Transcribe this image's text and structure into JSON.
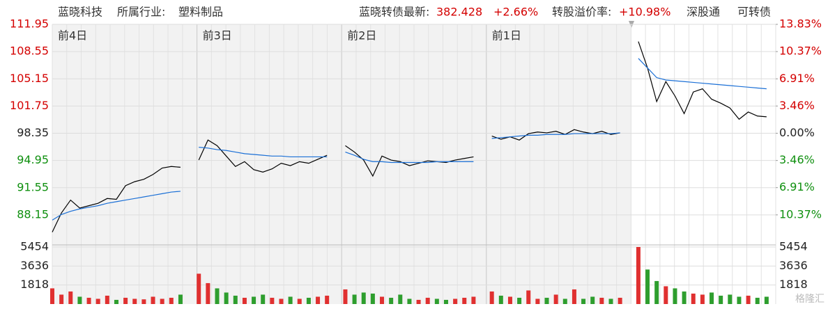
{
  "header": {
    "name": "蓝晓科技",
    "industry_label": "所属行业:",
    "industry": "塑料制品",
    "quote_label": "蓝晓转债最新:",
    "quote": "382.428",
    "change": "+2.66%",
    "premium_label": "转股溢价率:",
    "premium": "+10.98%",
    "tag1": "深股通",
    "tag2": "可转债",
    "watermark": "格隆汇"
  },
  "chart_data": [
    {
      "type": "line",
      "section_labels": [
        "前4日",
        "前3日",
        "前2日",
        "前1日"
      ],
      "x": [
        0,
        1,
        2,
        3,
        4,
        5,
        6,
        7,
        8,
        9,
        10,
        11,
        12,
        13,
        14,
        15,
        16,
        17,
        18,
        19,
        20,
        21,
        22,
        23,
        24,
        25,
        26,
        27,
        28,
        29,
        30,
        31,
        32,
        33,
        34,
        35,
        36,
        37,
        38,
        39,
        40,
        41,
        42,
        43,
        44,
        45,
        46,
        47,
        48,
        49,
        50,
        51,
        52,
        53,
        54,
        55,
        56,
        57,
        58,
        59,
        60,
        61,
        62,
        63,
        64,
        65,
        66,
        67,
        68,
        69,
        70,
        71,
        72,
        73,
        74,
        75,
        76,
        77,
        78,
        79
      ],
      "xlim": [
        0,
        79
      ],
      "ylim": [
        84.75,
        111.95
      ],
      "yticks": [
        111.95,
        108.55,
        105.15,
        101.75,
        98.35,
        94.95,
        91.55,
        88.15
      ],
      "y2lim": [
        -13.83,
        13.83
      ],
      "y2ticks": [
        {
          "value": 13.83,
          "label": "13.83%"
        },
        {
          "value": 10.37,
          "label": "10.37%"
        },
        {
          "value": 6.91,
          "label": "6.91%"
        },
        {
          "value": 3.46,
          "label": "3.46%"
        },
        {
          "value": 0,
          "label": "0.00%"
        },
        {
          "value": -3.46,
          "label": "3.46%"
        },
        {
          "value": -6.91,
          "label": "6.91%"
        },
        {
          "value": -10.37,
          "label": "10.37%"
        }
      ],
      "up_color": "#d40000",
      "down_color": "#109010",
      "grid": true,
      "series": [
        {
          "color": "#000000",
          "values": [
            86.0,
            88.4,
            90.0,
            89.0,
            89.3,
            89.6,
            90.2,
            90.1,
            91.8,
            92.3,
            92.6,
            93.2,
            94.0,
            94.2,
            94.1,
            null,
            95.0,
            97.5,
            96.8,
            95.5,
            94.2,
            94.8,
            93.8,
            93.5,
            93.9,
            94.6,
            94.3,
            94.8,
            94.6,
            95.1,
            95.6,
            null,
            96.8,
            96.0,
            95.0,
            93.0,
            95.5,
            95.0,
            94.8,
            94.3,
            94.6,
            94.9,
            94.8,
            94.7,
            95.0,
            95.2,
            95.4,
            null,
            98.0,
            97.6,
            97.9,
            97.5,
            98.3,
            98.5,
            98.4,
            98.6,
            98.2,
            98.8,
            98.5,
            98.3,
            98.6,
            98.2,
            98.4,
            null,
            109.8,
            106.5,
            102.3,
            104.8,
            103.0,
            100.8,
            103.5,
            103.9,
            102.6,
            102.1,
            101.5,
            100.1,
            101.0,
            100.5,
            100.4,
            null
          ]
        },
        {
          "color": "#1a6fd6",
          "values": [
            87.5,
            88.2,
            88.6,
            88.9,
            89.1,
            89.3,
            89.6,
            89.8,
            90.0,
            90.2,
            90.4,
            90.6,
            90.8,
            91.0,
            91.1,
            null,
            96.6,
            96.5,
            96.3,
            96.2,
            96.0,
            95.8,
            95.7,
            95.6,
            95.5,
            95.5,
            95.4,
            95.4,
            95.4,
            95.4,
            95.4,
            null,
            96.0,
            95.6,
            95.1,
            94.8,
            94.8,
            94.7,
            94.7,
            94.7,
            94.7,
            94.7,
            94.8,
            94.8,
            94.8,
            94.8,
            94.8,
            null,
            97.7,
            97.8,
            97.9,
            98.0,
            98.1,
            98.1,
            98.2,
            98.2,
            98.2,
            98.3,
            98.3,
            98.3,
            98.3,
            98.3,
            98.4,
            null,
            107.7,
            106.5,
            105.3,
            105.0,
            104.9,
            104.8,
            104.7,
            104.6,
            104.5,
            104.4,
            104.3,
            104.2,
            104.1,
            104.0,
            103.9,
            null
          ]
        }
      ]
    },
    {
      "type": "bar",
      "ylim": [
        0,
        5454
      ],
      "yticks": [
        5454,
        3636,
        1818
      ],
      "up_color": "#e03030",
      "down_color": "#2e9e2e",
      "values": [
        1500,
        900,
        1200,
        700,
        600,
        500,
        800,
        400,
        600,
        500,
        450,
        700,
        500,
        600,
        900,
        null,
        2900,
        2000,
        1500,
        1100,
        800,
        600,
        700,
        900,
        600,
        500,
        700,
        500,
        600,
        700,
        800,
        null,
        1400,
        900,
        1100,
        1000,
        700,
        600,
        900,
        500,
        400,
        600,
        500,
        400,
        500,
        600,
        700,
        null,
        1200,
        800,
        700,
        600,
        1300,
        500,
        600,
        900,
        500,
        1400,
        500,
        700,
        600,
        500,
        600,
        null,
        5454,
        3300,
        2200,
        1700,
        1500,
        1200,
        1000,
        900,
        1100,
        800,
        900,
        700,
        800,
        600,
        700,
        null
      ]
    }
  ]
}
